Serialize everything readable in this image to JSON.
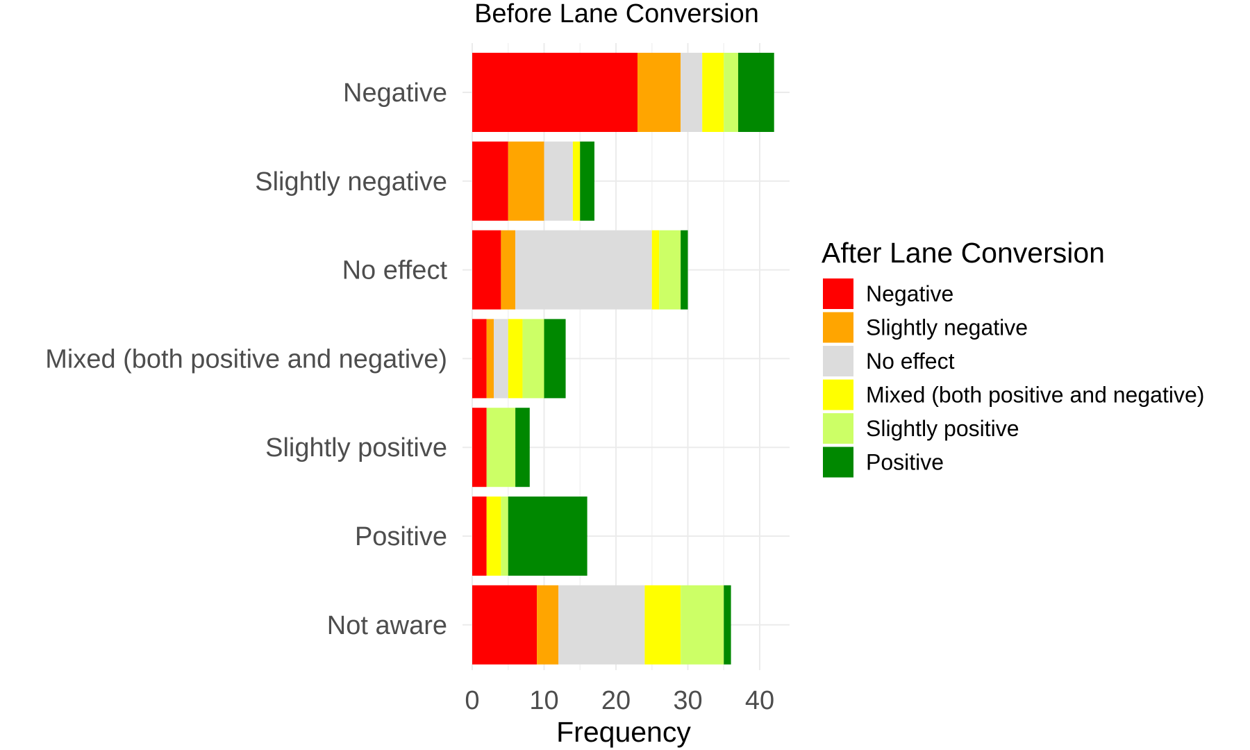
{
  "chart_data": {
    "type": "bar",
    "orientation": "horizontal",
    "stacked": true,
    "title": "Before Lane Conversion",
    "xlabel": "Frequency",
    "ylabel": "Before Lane Conversion",
    "xlim": [
      0,
      44
    ],
    "xticks": [
      0,
      10,
      20,
      30,
      40
    ],
    "grid": true,
    "categories": [
      "Negative",
      "Slightly negative",
      "No effect",
      "Mixed (both positive and negative)",
      "Slightly positive",
      "Positive",
      "Not aware"
    ],
    "legend": {
      "title": "After Lane Conversion",
      "position": "right"
    },
    "series": [
      {
        "name": "Negative",
        "color": "#ff0000",
        "values": [
          23,
          5,
          4,
          2,
          2,
          2,
          9
        ]
      },
      {
        "name": "Slightly negative",
        "color": "#ffa500",
        "values": [
          6,
          5,
          2,
          1,
          0,
          0,
          3
        ]
      },
      {
        "name": "No effect",
        "color": "#dcdcdc",
        "values": [
          3,
          4,
          19,
          2,
          0,
          0,
          12
        ]
      },
      {
        "name": "Mixed (both positive and negative)",
        "color": "#ffff00",
        "values": [
          3,
          1,
          1,
          2,
          0,
          2,
          5
        ]
      },
      {
        "name": "Slightly positive",
        "color": "#ccff66",
        "values": [
          2,
          0,
          3,
          3,
          4,
          1,
          6
        ]
      },
      {
        "name": "Positive",
        "color": "#008800",
        "values": [
          5,
          2,
          1,
          3,
          2,
          11,
          1
        ]
      }
    ]
  }
}
